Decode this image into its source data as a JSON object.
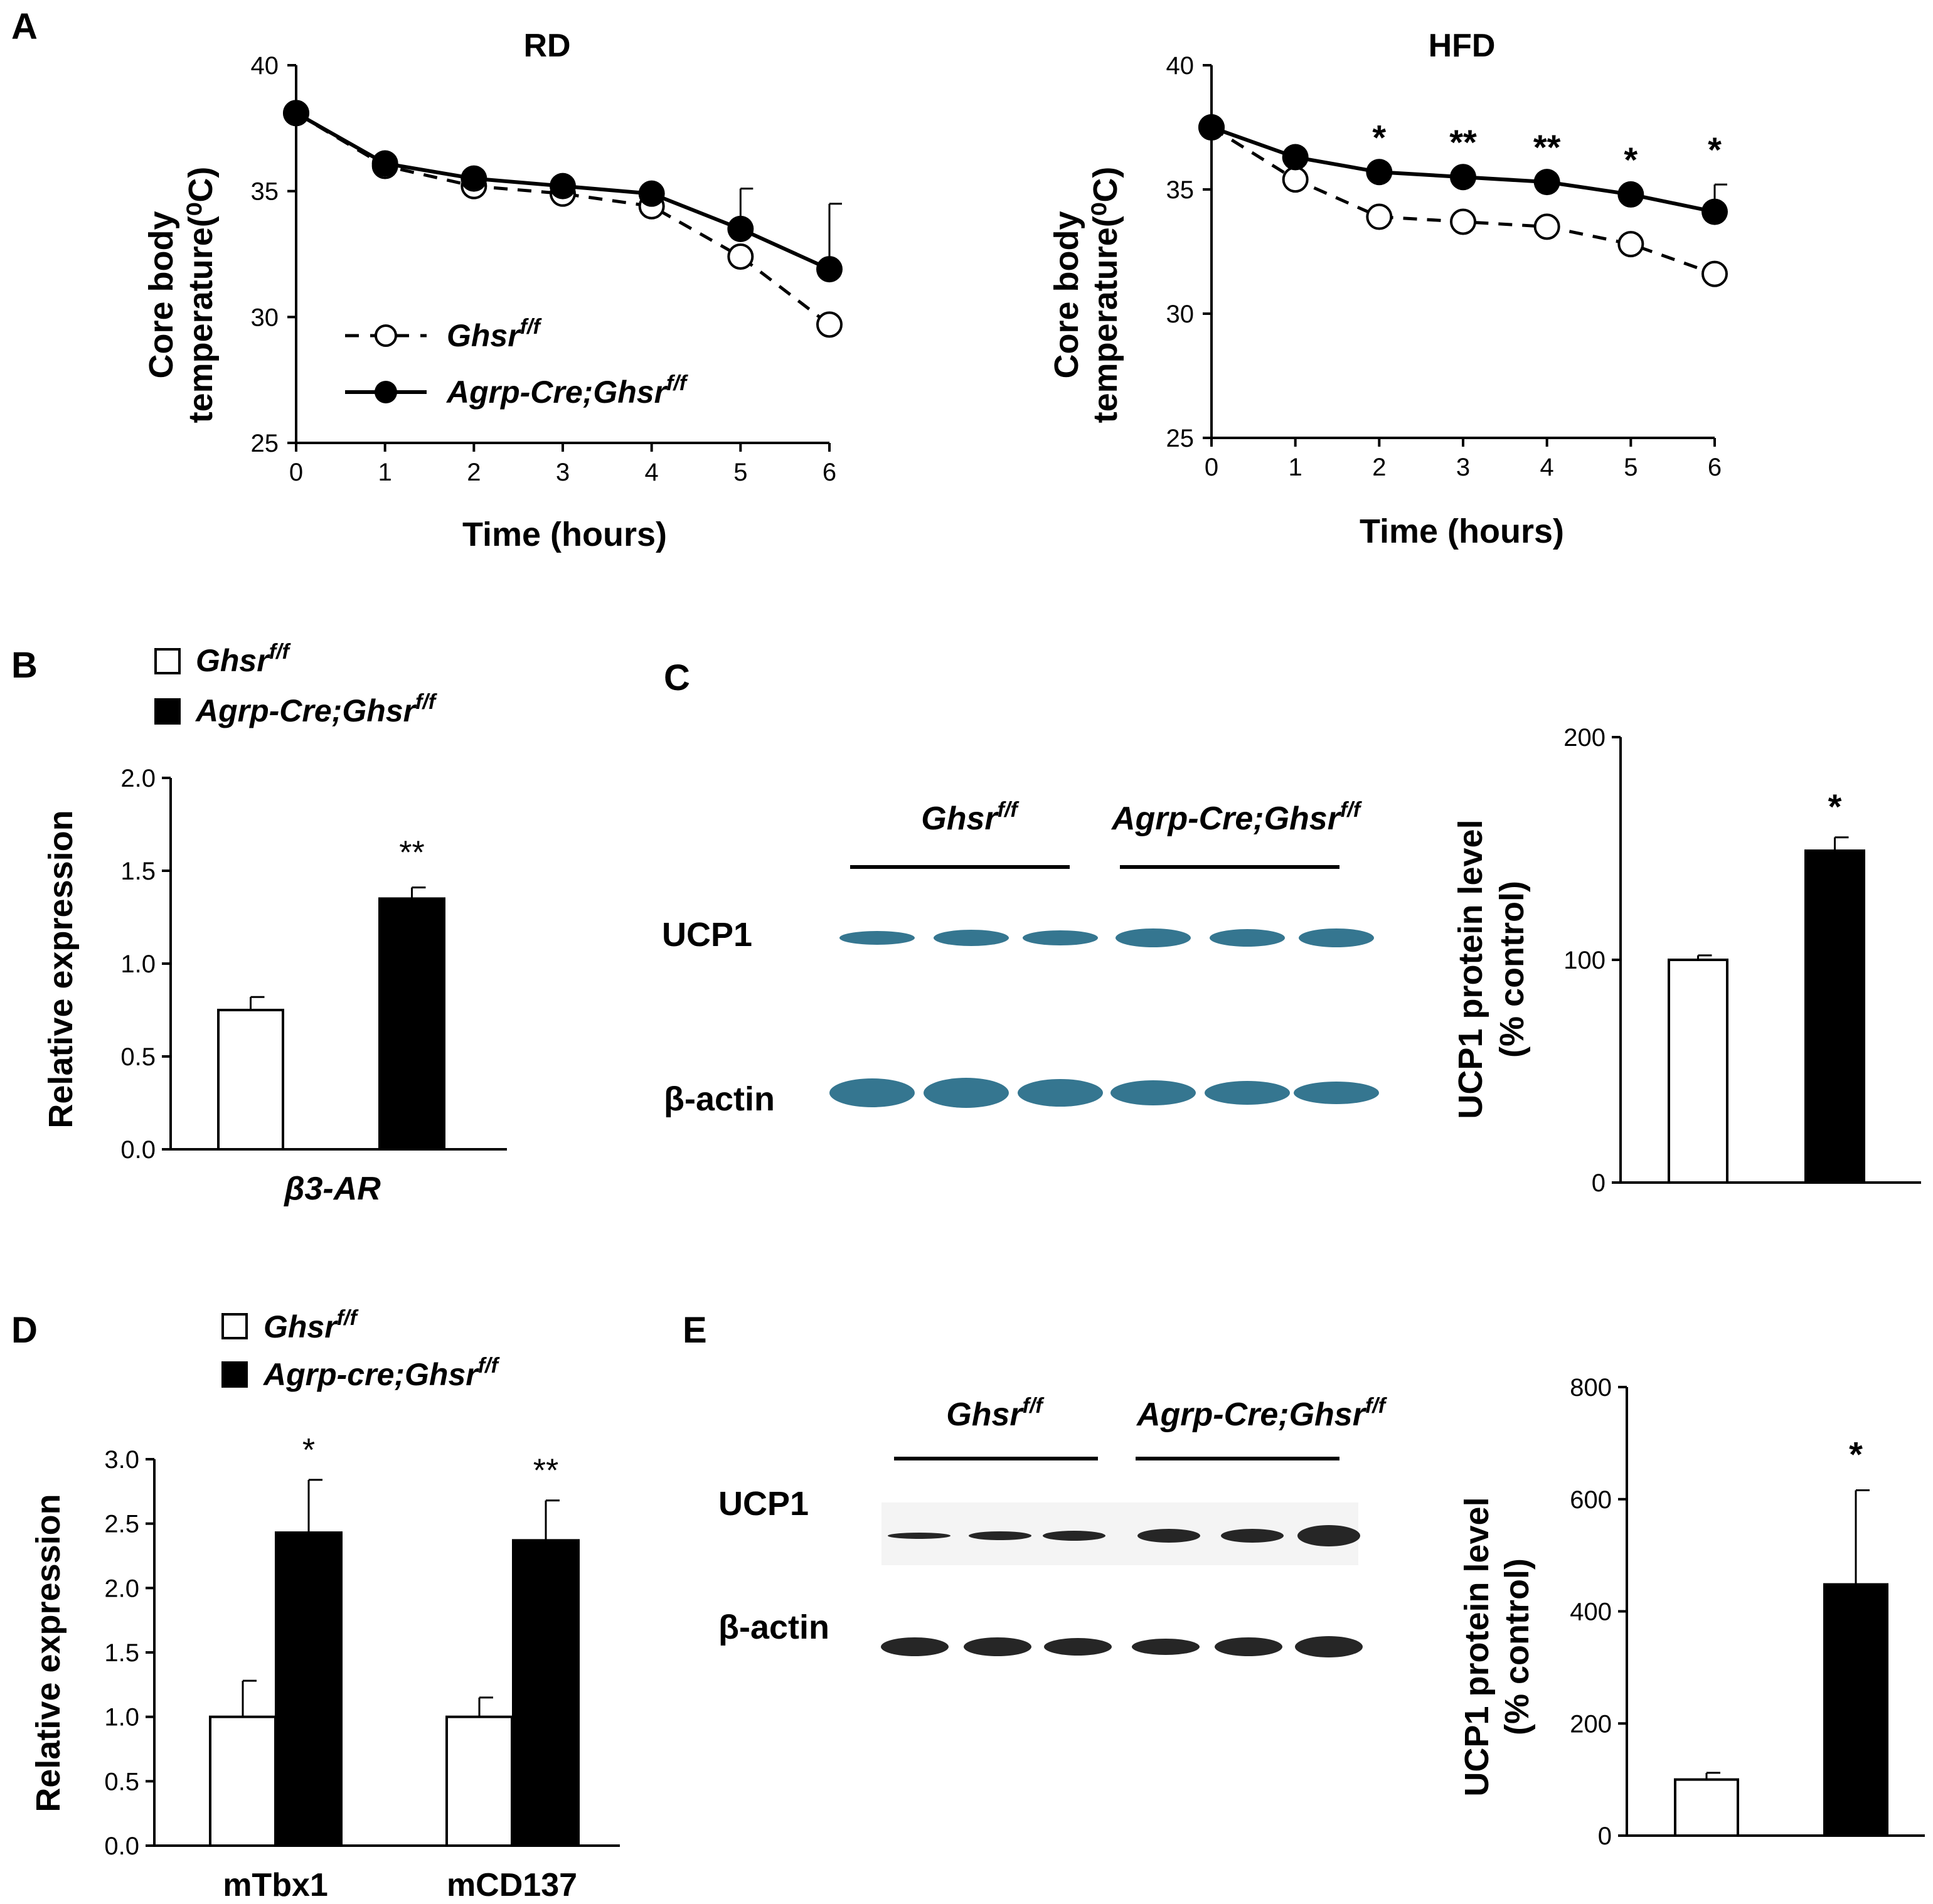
{
  "figure": {
    "panels": [
      "A",
      "B",
      "C",
      "D",
      "E"
    ]
  },
  "legend_entries": {
    "control": "Ghsr",
    "control_sup": "f/f",
    "knockout": "Agrp-Cre;Ghsr",
    "knockout_lower": "Agrp-cre;Ghsr",
    "knockout_sup": "f/f"
  },
  "colors": {
    "control_fill": "#ffffff",
    "knockout_fill": "#000000",
    "axis": "#000000",
    "blot_blue": "#2a6f8a",
    "blot_dark": "#1a1a1a"
  },
  "chart_data": [
    {
      "id": "A-RD",
      "type": "line",
      "title": "RD",
      "xlabel": "Time (hours)",
      "ylabel_line1": "Core body",
      "ylabel_line2": "temperature(⁰C)",
      "x": [
        0,
        1,
        2,
        3,
        4,
        5,
        6
      ],
      "xlim": [
        0,
        6
      ],
      "ylim": [
        25,
        40
      ],
      "yticks": [
        25,
        30,
        35,
        40
      ],
      "grid": false,
      "legend": "bottom-left",
      "series": [
        {
          "name": "Ghsr f/f",
          "style": "dashed-open",
          "values": [
            38.1,
            36.0,
            35.2,
            34.9,
            34.4,
            32.4,
            29.7
          ],
          "err": [
            0,
            0,
            0,
            0,
            0,
            0,
            0
          ]
        },
        {
          "name": "Agrp-Cre;Ghsr f/f",
          "style": "solid-filled",
          "values": [
            38.1,
            36.1,
            35.5,
            35.2,
            34.9,
            33.5,
            31.9
          ],
          "err": [
            0,
            0,
            0,
            0,
            0,
            1.6,
            2.6
          ]
        }
      ],
      "annotations": []
    },
    {
      "id": "A-HFD",
      "type": "line",
      "title": "HFD",
      "xlabel": "Time (hours)",
      "ylabel_line1": "Core body",
      "ylabel_line2": "temperature(⁰C)",
      "x": [
        0,
        1,
        2,
        3,
        4,
        5,
        6
      ],
      "xlim": [
        0,
        6
      ],
      "ylim": [
        25,
        40
      ],
      "yticks": [
        25,
        30,
        35,
        40
      ],
      "grid": false,
      "series": [
        {
          "name": "Ghsr f/f",
          "style": "dashed-open",
          "values": [
            37.5,
            35.4,
            33.9,
            33.7,
            33.5,
            32.8,
            31.6
          ],
          "err": [
            0,
            0,
            0,
            0,
            0,
            0,
            0
          ]
        },
        {
          "name": "Agrp-Cre;Ghsr f/f",
          "style": "solid-filled",
          "values": [
            37.5,
            36.3,
            35.7,
            35.5,
            35.3,
            34.8,
            34.1
          ],
          "err": [
            0,
            0,
            0,
            0,
            0,
            0,
            1.1
          ]
        }
      ],
      "annotations": [
        {
          "x": 2,
          "text": "*"
        },
        {
          "x": 3,
          "text": "**"
        },
        {
          "x": 4,
          "text": "**"
        },
        {
          "x": 5,
          "text": "*"
        },
        {
          "x": 6,
          "text": "*"
        }
      ]
    },
    {
      "id": "B",
      "type": "bar",
      "ylabel": "Relative expression",
      "categories": [
        "β3-AR"
      ],
      "ylim": [
        0,
        2.0
      ],
      "yticks": [
        "0.0",
        "0.5",
        "1.0",
        "1.5",
        "2.0"
      ],
      "series": [
        {
          "name": "Ghsr f/f",
          "values": [
            0.75
          ],
          "err": [
            0.07
          ]
        },
        {
          "name": "Agrp-Cre;Ghsr f/f",
          "values": [
            1.35
          ],
          "err": [
            0.06
          ]
        }
      ],
      "annotations": [
        {
          "series": 1,
          "text": "**"
        }
      ]
    },
    {
      "id": "C-bar",
      "type": "bar",
      "ylabel_line1": "UCP1 protein level",
      "ylabel_line2": "(% control)",
      "categories": [
        "",
        ""
      ],
      "ylim": [
        0,
        200
      ],
      "yticks": [
        0,
        100,
        200
      ],
      "values": [
        100,
        149
      ],
      "err": [
        2,
        6
      ],
      "annotations": [
        {
          "index": 1,
          "text": "*"
        }
      ]
    },
    {
      "id": "D",
      "type": "bar",
      "ylabel": "Relative expression",
      "categories": [
        "mTbx1",
        "mCD137"
      ],
      "ylim": [
        0,
        3.0
      ],
      "yticks": [
        "0.0",
        "0.5",
        "1.0",
        "1.5",
        "2.0",
        "2.5",
        "3.0"
      ],
      "series": [
        {
          "name": "Ghsr f/f",
          "values": [
            1.0,
            1.0
          ],
          "err": [
            0.28,
            0.15
          ]
        },
        {
          "name": "Agrp-cre;Ghsr f/f",
          "values": [
            2.43,
            2.37
          ],
          "err": [
            0.41,
            0.31
          ]
        }
      ],
      "annotations": [
        {
          "category": 0,
          "text": "*"
        },
        {
          "category": 1,
          "text": "**"
        }
      ]
    },
    {
      "id": "E-bar",
      "type": "bar",
      "ylabel_line1": "UCP1 protein level",
      "ylabel_line2": "(% control)",
      "categories": [
        "",
        ""
      ],
      "ylim": [
        0,
        800
      ],
      "yticks": [
        0,
        200,
        400,
        600,
        800
      ],
      "values": [
        100,
        448
      ],
      "err": [
        12,
        168
      ],
      "annotations": [
        {
          "index": 1,
          "text": "*"
        }
      ]
    }
  ],
  "blots": {
    "C": {
      "group_control": "Ghsr",
      "group_knockout": "Agrp-Cre;Ghsr",
      "sup": "f/f",
      "row1": "UCP1",
      "row2": "β-actin"
    },
    "E": {
      "group_control": "Ghsr",
      "group_knockout": "Agrp-Cre;Ghsr",
      "sup": "f/f",
      "row1": "UCP1",
      "row2": "β-actin"
    }
  }
}
